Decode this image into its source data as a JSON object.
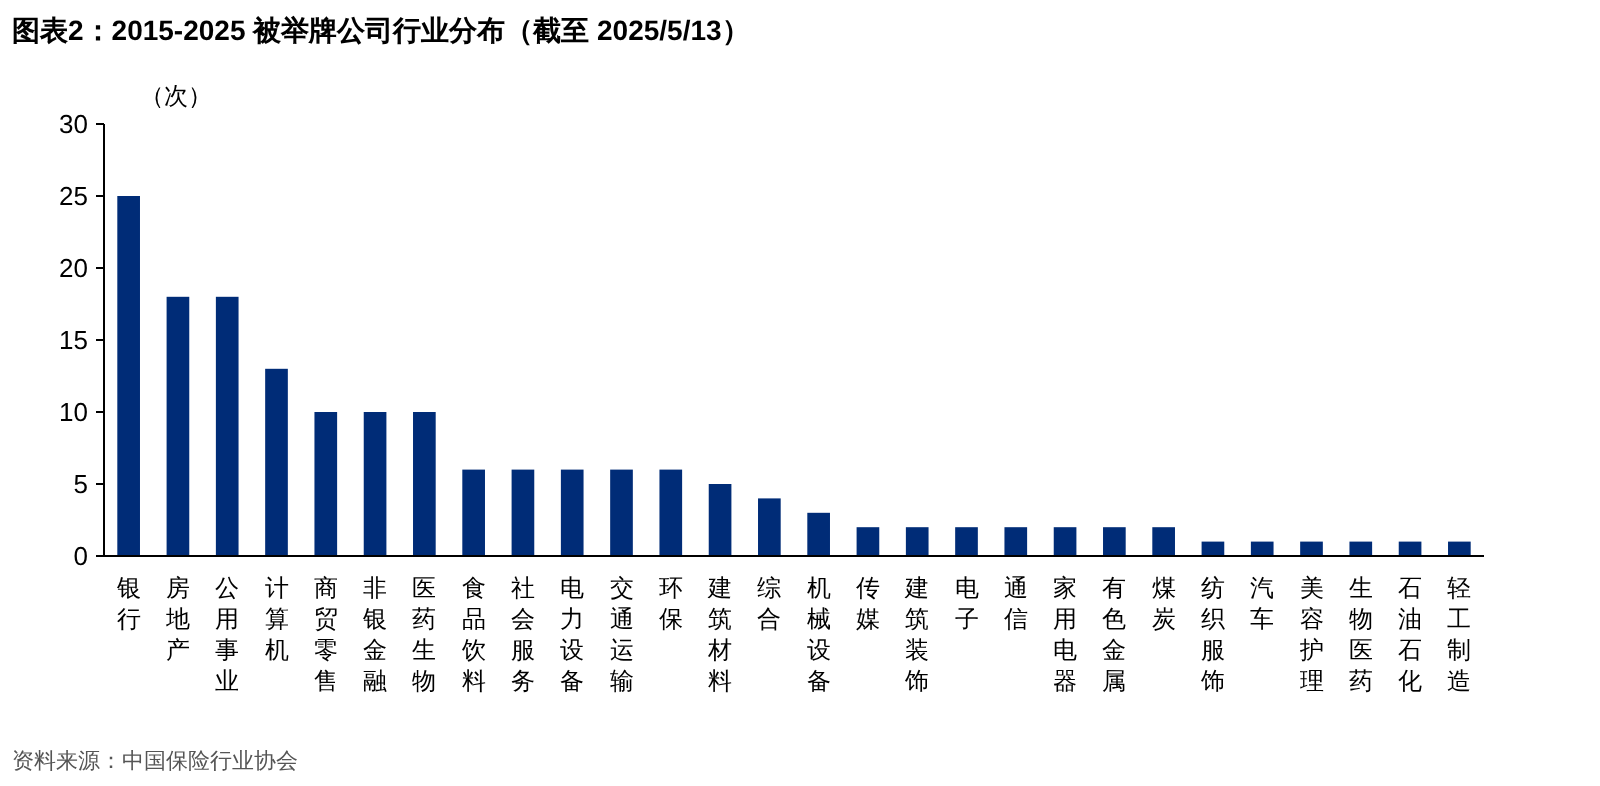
{
  "chart_data": {
    "type": "bar",
    "title": "图表2：2015-2025 被举牌公司行业分布（截至 2025/5/13）",
    "ylabel": "（次）",
    "categories": [
      "银行",
      "房地产",
      "公用事业",
      "计算机",
      "商贸零售",
      "非银金融",
      "医药生物",
      "食品饮料",
      "社会服务",
      "电力设备",
      "交通运输",
      "环保",
      "建筑材料",
      "综合",
      "机械设备",
      "传媒",
      "建筑装饰",
      "电子",
      "通信",
      "家用电器",
      "有色金属",
      "煤炭",
      "纺织服饰",
      "汽车",
      "美容护理",
      "生物医药",
      "石油石化",
      "轻工制造"
    ],
    "values": [
      25,
      18,
      18,
      13,
      10,
      10,
      10,
      6,
      6,
      6,
      6,
      6,
      5,
      4,
      3,
      2,
      2,
      2,
      2,
      2,
      2,
      2,
      1,
      1,
      1,
      1,
      1,
      1
    ],
    "color": "#002c77",
    "ylim": [
      0,
      30
    ],
    "yticks": [
      0,
      5,
      10,
      15,
      20,
      25,
      30
    ],
    "grid": false,
    "annotations": [
      "资料来源：中国保险行业协会"
    ]
  }
}
